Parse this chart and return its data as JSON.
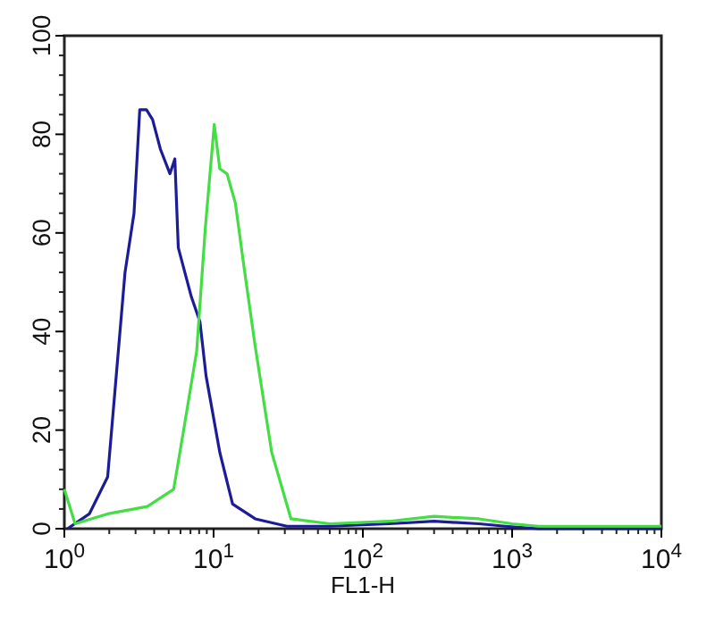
{
  "chart_data": {
    "type": "line",
    "xlabel": "FL1-H",
    "log": "x",
    "xlim": [
      1,
      10000
    ],
    "xticks": [
      {
        "value": 1,
        "label": "10$^{0}$"
      },
      {
        "value": 10,
        "label": "10$^{1}$"
      },
      {
        "value": 100,
        "label": "10$^{2}$"
      },
      {
        "value": 1000,
        "label": "10$^{3}$"
      },
      {
        "value": 10000,
        "label": "10$^{4}$"
      }
    ],
    "ylim": [
      0,
      100
    ],
    "yticks": [
      0,
      20,
      40,
      60,
      80,
      100
    ],
    "marker": "none",
    "line_style": "solid",
    "series": [
      {
        "color": "#1c1c96",
        "x": [
          1.05,
          1.47,
          1.95,
          2.55,
          2.93,
          3.2,
          3.55,
          3.9,
          4.4,
          5.1,
          5.5,
          5.8,
          7.1,
          8.1,
          8.9,
          11,
          13.4,
          19,
          31,
          60,
          150,
          300,
          600,
          900,
          1500,
          5000,
          10000
        ],
        "values": [
          0,
          3,
          10.5,
          52,
          64,
          85,
          85,
          83,
          77,
          72,
          75,
          57,
          47,
          42,
          31,
          15.5,
          5,
          2,
          0.5,
          0.5,
          1,
          1.5,
          1,
          0.5,
          0,
          0,
          0
        ]
      },
      {
        "color": "#44dd44",
        "x": [
          1,
          1.18,
          1.95,
          3.6,
          5.4,
          6.3,
          7.7,
          8.8,
          10.1,
          11,
          12.3,
          14,
          16,
          19,
          24.5,
          33,
          60,
          150,
          300,
          600,
          1000,
          1500,
          5000,
          10000
        ],
        "values": [
          8,
          1,
          3,
          4.5,
          8,
          20,
          36,
          61,
          82,
          73,
          72,
          66,
          53,
          37,
          15.5,
          2,
          1,
          1.5,
          2.5,
          2,
          1,
          0.5,
          0.5,
          0.5
        ]
      }
    ]
  }
}
